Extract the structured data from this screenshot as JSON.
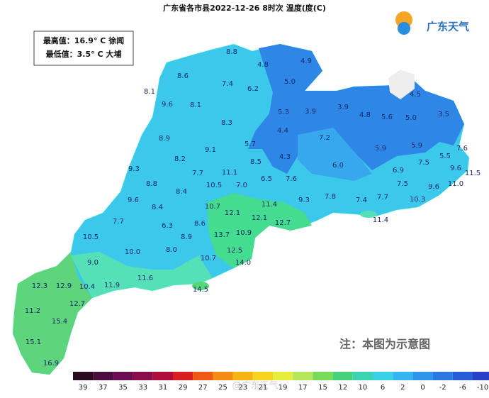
{
  "header": {
    "title": "广东省各市县2022-12-26 8时次 温度(度(C)",
    "logo": "广东天气"
  },
  "info": {
    "max": "最高值：16.9° C 徐闻",
    "min": "最低值：3.5° C 大埔"
  },
  "labels": [
    "8.8",
    "4.8",
    "4.9",
    "8.6",
    "5.0",
    "7.4",
    "6.2",
    "8.1",
    "4.5",
    "9.6",
    "8.1",
    "5.3",
    "3.9",
    "3.9",
    "4.8",
    "5.6",
    "5.0",
    "3.5",
    "8.3",
    "4.4",
    "8.9",
    "7.2",
    "5.7",
    "9.1",
    "5.9",
    "5.9",
    "7.6",
    "8.2",
    "4.3",
    "8.5",
    "5.5",
    "6.0",
    "9.3",
    "7.7",
    "11.1",
    "6.9",
    "7.5",
    "9.6",
    "11.5",
    "8.8",
    "10.5",
    "7.0",
    "6.5",
    "7.6",
    "7.5",
    "11.0",
    "8.4",
    "9.6",
    "9.6",
    "9.3",
    "7.8",
    "7.4",
    "7.7",
    "11.4",
    "10.3",
    "8.4",
    "10.7",
    "12.1",
    "7.7",
    "6.3",
    "8.6",
    "12.1",
    "12.7",
    "11.4",
    "10.5",
    "8.9",
    "13.7",
    "10.9",
    "8.0",
    "10.0",
    "12.5",
    "9.0",
    "10.7",
    "14.0",
    "11.6",
    "12.3",
    "12.9",
    "10.4",
    "11.9",
    "14.5",
    "12.7",
    "11.2",
    "15.4",
    "15.1",
    "16.9"
  ],
  "note": "注：本图为示意图",
  "watermark": "@广东天气",
  "legend": [
    "39",
    "37",
    "35",
    "33",
    "31",
    "29",
    "27",
    "25",
    "23",
    "21",
    "19",
    "17",
    "15",
    "12",
    "10",
    "6",
    "2",
    "0",
    "-2",
    "-6",
    "-10"
  ]
}
